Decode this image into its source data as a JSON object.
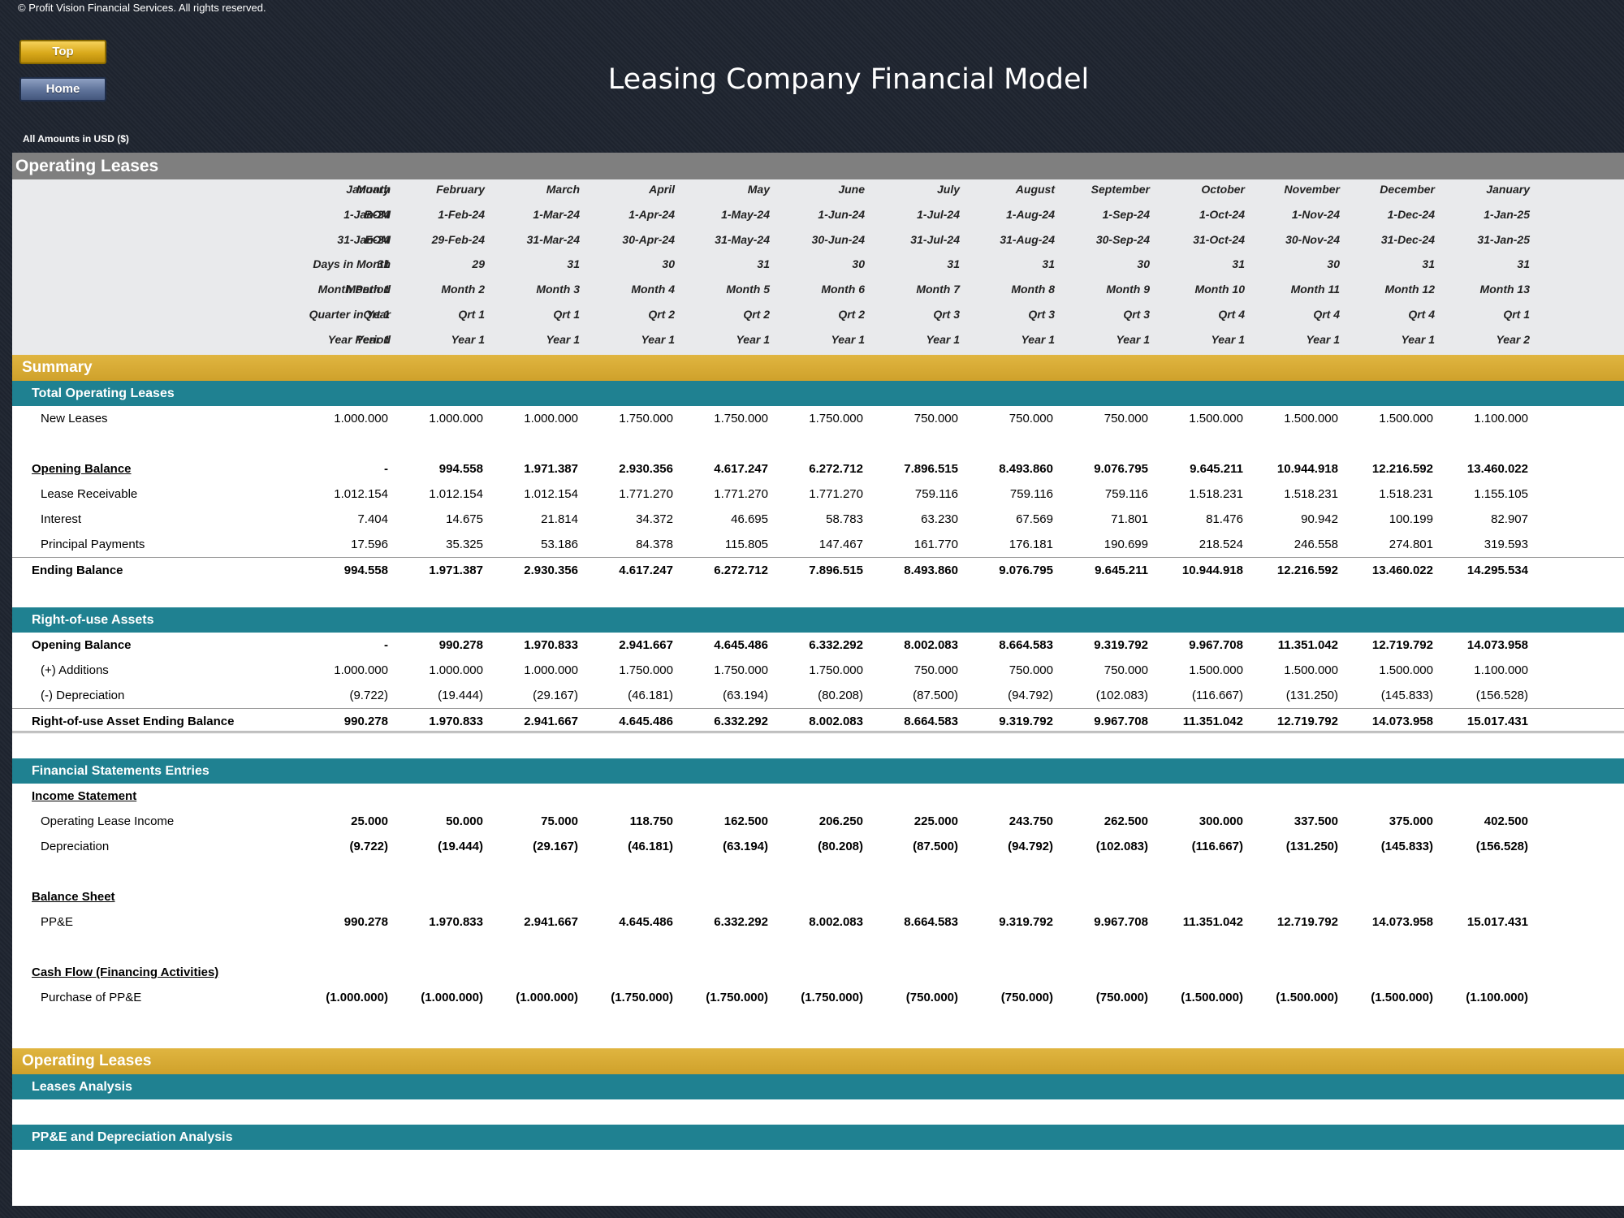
{
  "copyright": "© Profit Vision Financial Services. All rights reserved.",
  "nav": {
    "top_label": "Top",
    "home_label": "Home"
  },
  "app_title": "Leasing Company Financial Model",
  "currency_note": "All Amounts in  USD ($)",
  "section_title": "Operating Leases",
  "timeline": {
    "labels": {
      "month": "Month",
      "bom": "BOM",
      "eom": "EOM",
      "days": "Days in Month",
      "month_period": "Month Period",
      "quarter": "Quarter in Year",
      "year_period": "Year Period"
    },
    "month": [
      "January",
      "February",
      "March",
      "April",
      "May",
      "June",
      "July",
      "August",
      "September",
      "October",
      "November",
      "December",
      "January"
    ],
    "bom": [
      "1-Jan-24",
      "1-Feb-24",
      "1-Mar-24",
      "1-Apr-24",
      "1-May-24",
      "1-Jun-24",
      "1-Jul-24",
      "1-Aug-24",
      "1-Sep-24",
      "1-Oct-24",
      "1-Nov-24",
      "1-Dec-24",
      "1-Jan-25"
    ],
    "eom": [
      "31-Jan-24",
      "29-Feb-24",
      "31-Mar-24",
      "30-Apr-24",
      "31-May-24",
      "30-Jun-24",
      "31-Jul-24",
      "31-Aug-24",
      "30-Sep-24",
      "31-Oct-24",
      "30-Nov-24",
      "31-Dec-24",
      "31-Jan-25"
    ],
    "days": [
      "31",
      "29",
      "31",
      "30",
      "31",
      "30",
      "31",
      "31",
      "30",
      "31",
      "30",
      "31",
      "31"
    ],
    "month_period": [
      "Month 1",
      "Month 2",
      "Month 3",
      "Month 4",
      "Month 5",
      "Month 6",
      "Month 7",
      "Month 8",
      "Month 9",
      "Month 10",
      "Month 11",
      "Month 12",
      "Month 13"
    ],
    "quarter": [
      "Qrt 1",
      "Qrt 1",
      "Qrt 1",
      "Qrt 2",
      "Qrt 2",
      "Qrt 2",
      "Qrt 3",
      "Qrt 3",
      "Qrt 3",
      "Qrt 4",
      "Qrt 4",
      "Qrt 4",
      "Qrt 1"
    ],
    "year_period": [
      "Year 1",
      "Year 1",
      "Year 1",
      "Year 1",
      "Year 1",
      "Year 1",
      "Year 1",
      "Year 1",
      "Year 1",
      "Year 1",
      "Year 1",
      "Year 1",
      "Year 2"
    ]
  },
  "summary_band": "Summary",
  "total_leases": {
    "title": "Total Operating Leases",
    "new_leases": {
      "label": "New Leases",
      "values": [
        "1.000.000",
        "1.000.000",
        "1.000.000",
        "1.750.000",
        "1.750.000",
        "1.750.000",
        "750.000",
        "750.000",
        "750.000",
        "1.500.000",
        "1.500.000",
        "1.500.000",
        "1.100.000"
      ]
    },
    "opening_balance": {
      "label": "Opening Balance",
      "values": [
        "-",
        "994.558",
        "1.971.387",
        "2.930.356",
        "4.617.247",
        "6.272.712",
        "7.896.515",
        "8.493.860",
        "9.076.795",
        "9.645.211",
        "10.944.918",
        "12.216.592",
        "13.460.022"
      ]
    },
    "lease_receivable": {
      "label": "Lease Receivable",
      "values": [
        "1.012.154",
        "1.012.154",
        "1.012.154",
        "1.771.270",
        "1.771.270",
        "1.771.270",
        "759.116",
        "759.116",
        "759.116",
        "1.518.231",
        "1.518.231",
        "1.518.231",
        "1.155.105"
      ]
    },
    "interest": {
      "label": "Interest",
      "values": [
        "7.404",
        "14.675",
        "21.814",
        "34.372",
        "46.695",
        "58.783",
        "63.230",
        "67.569",
        "71.801",
        "81.476",
        "90.942",
        "100.199",
        "82.907"
      ]
    },
    "principal": {
      "label": "Principal Payments",
      "values": [
        "17.596",
        "35.325",
        "53.186",
        "84.378",
        "115.805",
        "147.467",
        "161.770",
        "176.181",
        "190.699",
        "218.524",
        "246.558",
        "274.801",
        "319.593"
      ]
    },
    "ending_balance": {
      "label": "Ending Balance",
      "values": [
        "994.558",
        "1.971.387",
        "2.930.356",
        "4.617.247",
        "6.272.712",
        "7.896.515",
        "8.493.860",
        "9.076.795",
        "9.645.211",
        "10.944.918",
        "12.216.592",
        "13.460.022",
        "14.295.534"
      ]
    }
  },
  "rou": {
    "title": "Right-of-use Assets",
    "opening": {
      "label": "Opening Balance",
      "values": [
        "-",
        "990.278",
        "1.970.833",
        "2.941.667",
        "4.645.486",
        "6.332.292",
        "8.002.083",
        "8.664.583",
        "9.319.792",
        "9.967.708",
        "11.351.042",
        "12.719.792",
        "14.073.958"
      ]
    },
    "additions": {
      "label": "(+) Additions",
      "values": [
        "1.000.000",
        "1.000.000",
        "1.000.000",
        "1.750.000",
        "1.750.000",
        "1.750.000",
        "750.000",
        "750.000",
        "750.000",
        "1.500.000",
        "1.500.000",
        "1.500.000",
        "1.100.000"
      ]
    },
    "depreciation": {
      "label": "(-) Depreciation",
      "values": [
        "(9.722)",
        "(19.444)",
        "(29.167)",
        "(46.181)",
        "(63.194)",
        "(80.208)",
        "(87.500)",
        "(94.792)",
        "(102.083)",
        "(116.667)",
        "(131.250)",
        "(145.833)",
        "(156.528)"
      ]
    },
    "ending": {
      "label": "Right-of-use Asset Ending Balance",
      "values": [
        "990.278",
        "1.970.833",
        "2.941.667",
        "4.645.486",
        "6.332.292",
        "8.002.083",
        "8.664.583",
        "9.319.792",
        "9.967.708",
        "11.351.042",
        "12.719.792",
        "14.073.958",
        "15.017.431"
      ]
    }
  },
  "fse": {
    "title": "Financial Statements Entries",
    "income_statement": "Income Statement",
    "op_lease_income": {
      "label": "Operating Lease Income",
      "values": [
        "25.000",
        "50.000",
        "75.000",
        "118.750",
        "162.500",
        "206.250",
        "225.000",
        "243.750",
        "262.500",
        "300.000",
        "337.500",
        "375.000",
        "402.500"
      ]
    },
    "depreciation": {
      "label": "Depreciation",
      "values": [
        "(9.722)",
        "(19.444)",
        "(29.167)",
        "(46.181)",
        "(63.194)",
        "(80.208)",
        "(87.500)",
        "(94.792)",
        "(102.083)",
        "(116.667)",
        "(131.250)",
        "(145.833)",
        "(156.528)"
      ]
    },
    "balance_sheet": "Balance Sheet",
    "ppe": {
      "label": "PP&E",
      "values": [
        "990.278",
        "1.970.833",
        "2.941.667",
        "4.645.486",
        "6.332.292",
        "8.002.083",
        "8.664.583",
        "9.319.792",
        "9.967.708",
        "11.351.042",
        "12.719.792",
        "14.073.958",
        "15.017.431"
      ]
    },
    "cash_flow": "Cash Flow (Financing Activities)",
    "purchase_ppe": {
      "label": "Purchase of PP&E",
      "values": [
        "(1.000.000)",
        "(1.000.000)",
        "(1.000.000)",
        "(1.750.000)",
        "(1.750.000)",
        "(1.750.000)",
        "(750.000)",
        "(750.000)",
        "(750.000)",
        "(1.500.000)",
        "(1.500.000)",
        "(1.500.000)",
        "(1.100.000)"
      ]
    }
  },
  "bottom": {
    "gold_title": "Operating Leases",
    "leases_analysis": "Leases Analysis",
    "ppe_analysis": "PP&E and Depreciation Analysis"
  }
}
